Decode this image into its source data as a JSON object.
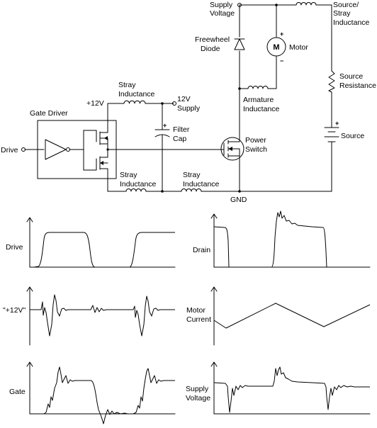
{
  "schematic": {
    "labels": {
      "supply_voltage": [
        "Supply",
        "Voltage"
      ],
      "source_stray": [
        "Source/",
        "Stray",
        "Inductance"
      ],
      "freewheel": [
        "Freewheel",
        "Diode"
      ],
      "motor": "Motor",
      "motor_symbol": "M",
      "source_resistance": [
        "Source",
        "Resistance"
      ],
      "armature": [
        "Armature",
        "Inductance"
      ],
      "source": "Source",
      "power_switch": [
        "Power",
        "Switch"
      ],
      "plus12v": "+12V",
      "stray_top": [
        "Stray",
        "Inductance"
      ],
      "supply12": [
        "12V",
        "Supply"
      ],
      "gate_driver": "Gate Driver",
      "filter_cap": [
        "Filter",
        "Cap"
      ],
      "drive": "Drive",
      "stray_bl": [
        "Stray",
        "Inductance"
      ],
      "stray_br": [
        "Stray",
        "Inductance"
      ],
      "gnd": "GND"
    },
    "polarity": {
      "plus": "+",
      "minus": "−"
    }
  },
  "waveforms": {
    "drive": "Drive",
    "plus12v": "\"+12V\"",
    "gate": "Gate",
    "drain": "Drain",
    "motor_current": [
      "Motor",
      "Current"
    ],
    "supply_voltage": [
      "Supply",
      "Voltage"
    ]
  }
}
